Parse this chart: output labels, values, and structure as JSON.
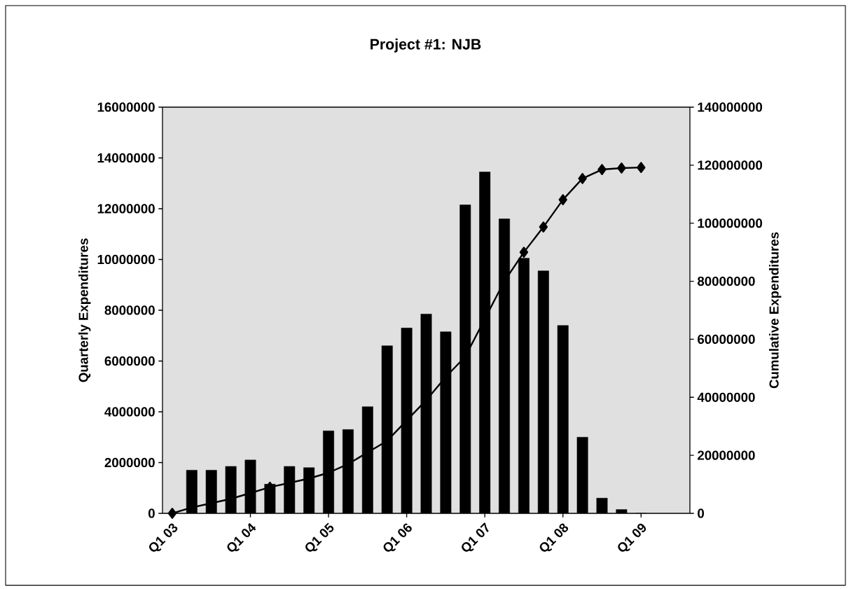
{
  "chart_data": {
    "type": "bar",
    "title": "Project #1: NJB",
    "ylabel": "Quarterly Expenditures",
    "y2label": "Cumulative Expenditures",
    "categories": [
      "Q1 03",
      null,
      null,
      null,
      "Q1 04",
      null,
      null,
      null,
      "Q1 05",
      null,
      null,
      null,
      "Q1 06",
      null,
      null,
      null,
      "Q1 07",
      null,
      null,
      null,
      "Q1 08",
      null,
      null,
      null,
      "Q1 09",
      null,
      null
    ],
    "ylim": [
      0,
      16000000
    ],
    "yticks": [
      0,
      2000000,
      4000000,
      6000000,
      8000000,
      10000000,
      12000000,
      14000000,
      16000000
    ],
    "y2lim": [
      0,
      140000000
    ],
    "y2ticks": [
      0,
      20000000,
      40000000,
      60000000,
      80000000,
      100000000,
      120000000,
      140000000
    ],
    "series": [
      {
        "color": "#000000",
        "values": [
          0,
          1700000,
          1700000,
          1850000,
          2100000,
          1150000,
          1850000,
          1800000,
          3250000,
          3300000,
          4200000,
          6600000,
          7300000,
          7850000,
          7150000,
          12150000,
          13450000,
          11600000,
          10050000,
          9550000,
          7400000,
          3000000,
          600000,
          150000,
          0,
          null,
          null
        ]
      },
      {
        "type": "line",
        "axis": "y2",
        "color": "#000000",
        "marker": "diamond",
        "values": [
          0,
          2000000,
          3500000,
          5000000,
          7000000,
          9000000,
          10500000,
          12000000,
          14000000,
          17000000,
          21000000,
          25000000,
          32000000,
          39000000,
          47000000,
          54000000,
          67000000,
          80000000,
          90000000,
          98700000,
          108100000,
          115400000,
          118500000,
          119000000,
          119200000,
          null,
          null
        ]
      }
    ]
  }
}
